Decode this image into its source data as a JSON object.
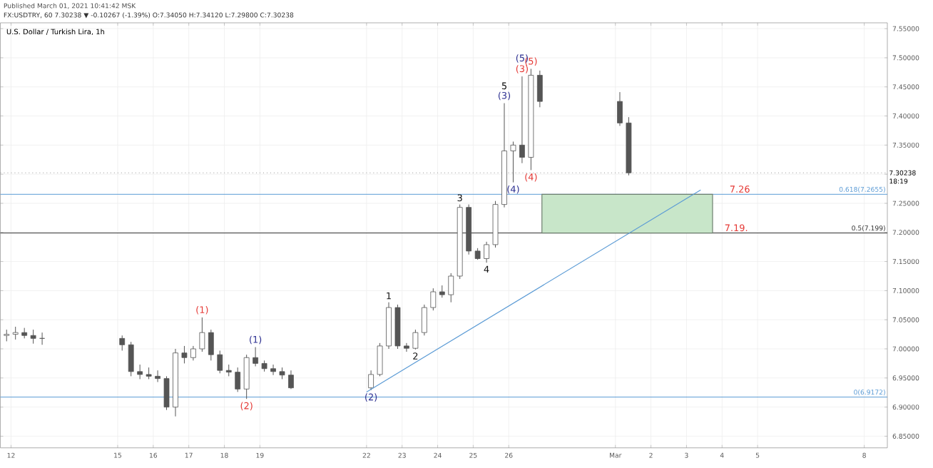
{
  "chart_data": {
    "type": "candlestick",
    "title": "U.S. Dollar / Turkish Lira, 1h",
    "subtitle": "FX:USDTRY, 60 7.30238 ▼ -0.10267 (-1.39%) O:7.34050 H:7.34120 L:7.29800 C:7.30238",
    "annotations": [
      "Published March 01, 2021 10:41:42 MSK",
      "18:19",
      {
        "text": "(1)",
        "x": "2021-02-17T09:00",
        "y": 7.054
      },
      {
        "text": "(2)",
        "x": "2021-02-18T15:00",
        "y": 6.914
      },
      {
        "text": "(3)",
        "x": "2021-02-26T09:00",
        "y": 7.468
      },
      {
        "text": "(4)",
        "x": "2021-02-26T15:00",
        "y": 7.307
      },
      {
        "text": "(5)",
        "x": "2021-02-26T15:00",
        "y": 7.481
      },
      {
        "text": "7.26",
        "x": "2021-03-04T12:00",
        "y": 7.2655
      },
      {
        "text": "7.19.",
        "x": "2021-03-04T09:35",
        "y": 7.199
      },
      {
        "text": "(1)",
        "x": "2021-02-18T21:00",
        "y": 7.003
      },
      {
        "text": "(2)",
        "x": "2021-02-22T03:00",
        "y": 6.929
      },
      {
        "text": "(3)",
        "x": "2021-02-25T21:00",
        "y": 7.422
      },
      {
        "text": "(4)",
        "x": "2021-02-26T03:00",
        "y": 7.286
      },
      {
        "text": "(5)",
        "x": "2021-02-26T09:00",
        "y": 7.468
      },
      {
        "text": "1",
        "x": "2021-02-22T15:00",
        "y": 7.08
      },
      {
        "text": "2",
        "x": "2021-02-23T09:00",
        "y": 6.999
      },
      {
        "text": "3",
        "x": "2021-02-24T15:00",
        "y": 7.248
      },
      {
        "text": "4",
        "x": "2021-02-25T09:00",
        "y": 7.148
      },
      {
        "text": "5",
        "x": "2021-02-25T21:00",
        "y": 7.422
      }
    ],
    "xlim": [
      "2021-02-11T16:48",
      "2021-03-08T15:36"
    ],
    "xticks": [
      {
        "value": "2021-02-12",
        "label": "12"
      },
      {
        "value": "2021-02-15",
        "label": "15"
      },
      {
        "value": "2021-02-16",
        "label": "16"
      },
      {
        "value": "2021-02-17",
        "label": "17"
      },
      {
        "value": "2021-02-18",
        "label": "18"
      },
      {
        "value": "2021-02-19",
        "label": "19"
      },
      {
        "value": "2021-02-22",
        "label": "22"
      },
      {
        "value": "2021-02-23",
        "label": "23"
      },
      {
        "value": "2021-02-24",
        "label": "24"
      },
      {
        "value": "2021-02-25",
        "label": "25"
      },
      {
        "value": "2021-02-26",
        "label": "26"
      },
      {
        "value": "2021-03-01",
        "label": "Mar"
      },
      {
        "value": "2021-03-02",
        "label": "2"
      },
      {
        "value": "2021-03-03",
        "label": "3"
      },
      {
        "value": "2021-03-04",
        "label": "4"
      },
      {
        "value": "2021-03-05",
        "label": "5"
      },
      {
        "value": "2021-03-08",
        "label": "8"
      }
    ],
    "ylim": [
      6.83,
      7.56
    ],
    "yticks": [
      {
        "value": 6.85,
        "label": "6.85000"
      },
      {
        "value": 6.9,
        "label": "6.90000"
      },
      {
        "value": 6.95,
        "label": "6.95000"
      },
      {
        "value": 7.0,
        "label": "7.00000"
      },
      {
        "value": 7.05,
        "label": "7.05000"
      },
      {
        "value": 7.1,
        "label": "7.10000"
      },
      {
        "value": 7.15,
        "label": "7.15000"
      },
      {
        "value": 7.2,
        "label": "7.20000"
      },
      {
        "value": 7.25,
        "label": "7.25000"
      },
      {
        "value": 7.3,
        "label": null
      },
      {
        "value": 7.35,
        "label": "7.35000"
      },
      {
        "value": 7.4,
        "label": "7.40000"
      },
      {
        "value": 7.45,
        "label": "7.45000"
      },
      {
        "value": 7.5,
        "label": "7.50000"
      },
      {
        "value": 7.55,
        "label": "7.55000"
      }
    ],
    "grid": true,
    "ref_lines": [
      {
        "axis": "y",
        "value": 7.2655,
        "label": "0.618(7.2655)",
        "color": "#5b9bd5"
      },
      {
        "axis": "y",
        "value": 7.199,
        "label": "0.5(7.199)",
        "color": "#333333"
      },
      {
        "axis": "y",
        "value": 6.9172,
        "label": "0(6.9172)",
        "color": "#5b9bd5"
      },
      {
        "axis": "y",
        "value": 7.30238,
        "label": "7.30238",
        "color": "#999999",
        "line_style": "dotted"
      }
    ],
    "series": [
      {
        "color": "#555555",
        "x": [
          "2021-02-11T21:00",
          "2021-02-12T03:00",
          "2021-02-12T09:00",
          "2021-02-12T15:00",
          "2021-02-12T21:00",
          "2021-02-15T03:00",
          "2021-02-15T09:00",
          "2021-02-15T15:00",
          "2021-02-15T21:00",
          "2021-02-16T03:00",
          "2021-02-16T09:00",
          "2021-02-16T15:00",
          "2021-02-16T21:00",
          "2021-02-17T03:00",
          "2021-02-17T09:00",
          "2021-02-17T15:00",
          "2021-02-17T21:00",
          "2021-02-18T03:00",
          "2021-02-18T09:00",
          "2021-02-18T15:00",
          "2021-02-18T21:00",
          "2021-02-19T03:00",
          "2021-02-19T09:00",
          "2021-02-19T15:00",
          "2021-02-19T21:00",
          "2021-02-22T03:00",
          "2021-02-22T09:00",
          "2021-02-22T15:00",
          "2021-02-22T21:00",
          "2021-02-23T03:00",
          "2021-02-23T09:00",
          "2021-02-23T15:00",
          "2021-02-23T21:00",
          "2021-02-24T03:00",
          "2021-02-24T09:00",
          "2021-02-24T15:00",
          "2021-02-24T21:00",
          "2021-02-25T03:00",
          "2021-02-25T09:00",
          "2021-02-25T15:00",
          "2021-02-25T21:00",
          "2021-02-26T03:00",
          "2021-02-26T09:00",
          "2021-02-26T15:00",
          "2021-02-26T21:00",
          "2021-03-01T03:00",
          "2021-03-01T09:00"
        ],
        "ohlc": [
          [
            7.023,
            7.033,
            7.013,
            7.025
          ],
          [
            7.025,
            7.038,
            7.016,
            7.028
          ],
          [
            7.028,
            7.036,
            7.018,
            7.023
          ],
          [
            7.023,
            7.033,
            7.009,
            7.018
          ],
          [
            7.018,
            7.028,
            7.007,
            7.018
          ],
          [
            7.018,
            7.023,
            6.997,
            7.007
          ],
          [
            7.007,
            7.012,
            6.953,
            6.961
          ],
          [
            6.961,
            6.973,
            6.948,
            6.956
          ],
          [
            6.956,
            6.968,
            6.948,
            6.953
          ],
          [
            6.953,
            6.963,
            6.943,
            6.949
          ],
          [
            6.949,
            6.953,
            6.895,
            6.9
          ],
          [
            6.9,
            7.0,
            6.884,
            6.993
          ],
          [
            6.993,
            7.005,
            6.975,
            6.985
          ],
          [
            6.985,
            7.005,
            6.98,
            7.0
          ],
          [
            7.0,
            7.054,
            6.995,
            7.028
          ],
          [
            7.028,
            7.033,
            6.98,
            6.99
          ],
          [
            6.99,
            6.997,
            6.958,
            6.963
          ],
          [
            6.963,
            6.973,
            6.953,
            6.96
          ],
          [
            6.96,
            6.968,
            6.926,
            6.931
          ],
          [
            6.931,
            6.99,
            6.914,
            6.985
          ],
          [
            6.985,
            7.003,
            6.97,
            6.975
          ],
          [
            6.975,
            6.98,
            6.961,
            6.966
          ],
          [
            6.966,
            6.973,
            6.955,
            6.961
          ],
          [
            6.961,
            6.968,
            6.948,
            6.955
          ],
          [
            6.955,
            6.963,
            6.931,
            6.933
          ],
          [
            6.933,
            6.963,
            6.929,
            6.956
          ],
          [
            6.956,
            7.01,
            6.953,
            7.005
          ],
          [
            7.005,
            7.08,
            7.0,
            7.071
          ],
          [
            7.071,
            7.076,
            7.0,
            7.005
          ],
          [
            7.005,
            7.01,
            6.995,
            7.001
          ],
          [
            7.001,
            7.033,
            6.999,
            7.028
          ],
          [
            7.028,
            7.076,
            7.023,
            7.071
          ],
          [
            7.071,
            7.104,
            7.066,
            7.098
          ],
          [
            7.098,
            7.109,
            7.088,
            7.093
          ],
          [
            7.093,
            7.13,
            7.08,
            7.125
          ],
          [
            7.125,
            7.248,
            7.12,
            7.243
          ],
          [
            7.243,
            7.248,
            7.162,
            7.168
          ],
          [
            7.168,
            7.173,
            7.153,
            7.155
          ],
          [
            7.155,
            7.184,
            7.148,
            7.179
          ],
          [
            7.179,
            7.254,
            7.174,
            7.248
          ],
          [
            7.248,
            7.422,
            7.243,
            7.34
          ],
          [
            7.34,
            7.356,
            7.286,
            7.35
          ],
          [
            7.35,
            7.468,
            7.319,
            7.329
          ],
          [
            7.329,
            7.481,
            7.307,
            7.47
          ],
          [
            7.47,
            7.478,
            7.415,
            7.425
          ],
          [
            7.425,
            7.441,
            7.383,
            7.388
          ],
          [
            7.388,
            7.398,
            7.298,
            7.30238
          ]
        ]
      },
      {
        "type": "line",
        "color": "#5b9bd5",
        "x": [
          "2021-02-22T00:00",
          "2021-03-03T09:35"
        ],
        "values": [
          6.926,
          7.273
        ]
      },
      {
        "type": "bar",
        "color": "#c8e6c9",
        "x": [
          "2021-03-01T08:00"
        ],
        "base": [
          7.199
        ],
        "values": [
          0.0665
        ]
      }
    ]
  }
}
